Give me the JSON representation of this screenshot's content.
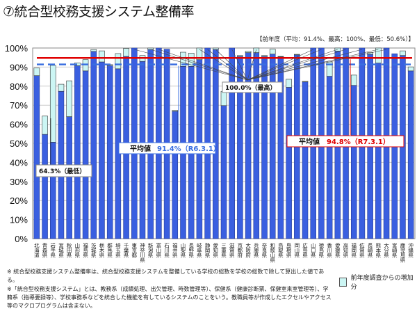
{
  "chart_data": {
    "type": "bar",
    "stacked": true,
    "title": "⑦統合型校務支援システム整備率",
    "previous_year_note": "【前年度（平均：91.4%、最高：100%、最低：50.6%）】",
    "categories": [
      "北海道",
      "青森県",
      "岩手県",
      "宮城県",
      "秋田県",
      "山形県",
      "福島県",
      "茨城県",
      "栃木県",
      "群馬県",
      "埼玉県",
      "千葉県",
      "東京都",
      "神奈川県",
      "新潟県",
      "富山県",
      "石川県",
      "福井県",
      "山梨県",
      "長野県",
      "岐阜県",
      "静岡県",
      "愛知県",
      "三重県",
      "滋賀県",
      "京都府",
      "大阪府",
      "兵庫県",
      "奈良県",
      "和歌山県",
      "鳥取県",
      "島根県",
      "岡山県",
      "広島県",
      "山口県",
      "徳島県",
      "香川県",
      "愛媛県",
      "高知県",
      "福岡県",
      "佐賀県",
      "長崎県",
      "熊本県",
      "大分県",
      "宮崎県",
      "鹿児島県",
      "沖縄県"
    ],
    "series": [
      {
        "name": "",
        "color": "#3a5fe0",
        "values": [
          85.5,
          54.7,
          50.6,
          77.3,
          64.0,
          90.7,
          88.0,
          98.2,
          92.7,
          90.7,
          89.1,
          95.6,
          100,
          93.0,
          99.2,
          100,
          99.4,
          66.8,
          90.4,
          90.4,
          93.9,
          100,
          99.2,
          69.8,
          100,
          95.6,
          97.6,
          97.6,
          95.6,
          96.8,
          95.4,
          79.4,
          96.4,
          82.2,
          100,
          100,
          85.2,
          98.4,
          100,
          80.4,
          100,
          96.7,
          92.1,
          100,
          97.0,
          96.1,
          88.0
        ]
      },
      {
        "name": "前年度調査からの増加分",
        "color": "#ccf6f4",
        "values": [
          4.0,
          9.6,
          40.3,
          3.7,
          18.8,
          1.5,
          5.9,
          1.0,
          5.8,
          0.6,
          8.0,
          4.2,
          0,
          3.1,
          0.8,
          0,
          0,
          0.5,
          7.4,
          6.9,
          6.1,
          0,
          0.8,
          7.5,
          0,
          0.5,
          0.7,
          2.4,
          0.5,
          2.6,
          0.2,
          4.2,
          0.3,
          0.3,
          0,
          0,
          7.5,
          1.6,
          0,
          5.4,
          0,
          0.9,
          7.9,
          0,
          0,
          2.4,
          2.1
        ]
      }
    ],
    "reference_lines": [
      {
        "label": "平均値",
        "value_text": "91.4%（R6.3.1）",
        "value": 91.4,
        "color": "#3a6fe0",
        "style": "dashed"
      },
      {
        "label": "平均値",
        "value_text": "94.8%（R7.3.1）",
        "value": 94.8,
        "color": "#e00000",
        "style": "solid"
      }
    ],
    "annotations": {
      "min": "64.3%（最低）",
      "max": "100.0%（最高）"
    },
    "yticks": [
      "0%",
      "10%",
      "20%",
      "30%",
      "40%",
      "50%",
      "60%",
      "70%",
      "80%",
      "90%",
      "100%"
    ],
    "ylim": [
      0,
      100
    ],
    "grid": true,
    "legend_position": "bottom-right"
  },
  "footnotes": [
    "※ 統合型校務支援システム整備率は、統合型校務支援システムを整備している学校の総数を学校の総数で除して算出した値である。",
    "※「統合型校務支援システム」とは、教務系（成績処理、出欠管理、時数管理等）、保健系（健康診断票、保健室来室管理等）、学籍系（指導要録等）、学校事務系などを統合した機能を有しているシステムのことをいう。教職員等が作成したエクセルやアクセス等のマクロプログラムは含まない。"
  ]
}
